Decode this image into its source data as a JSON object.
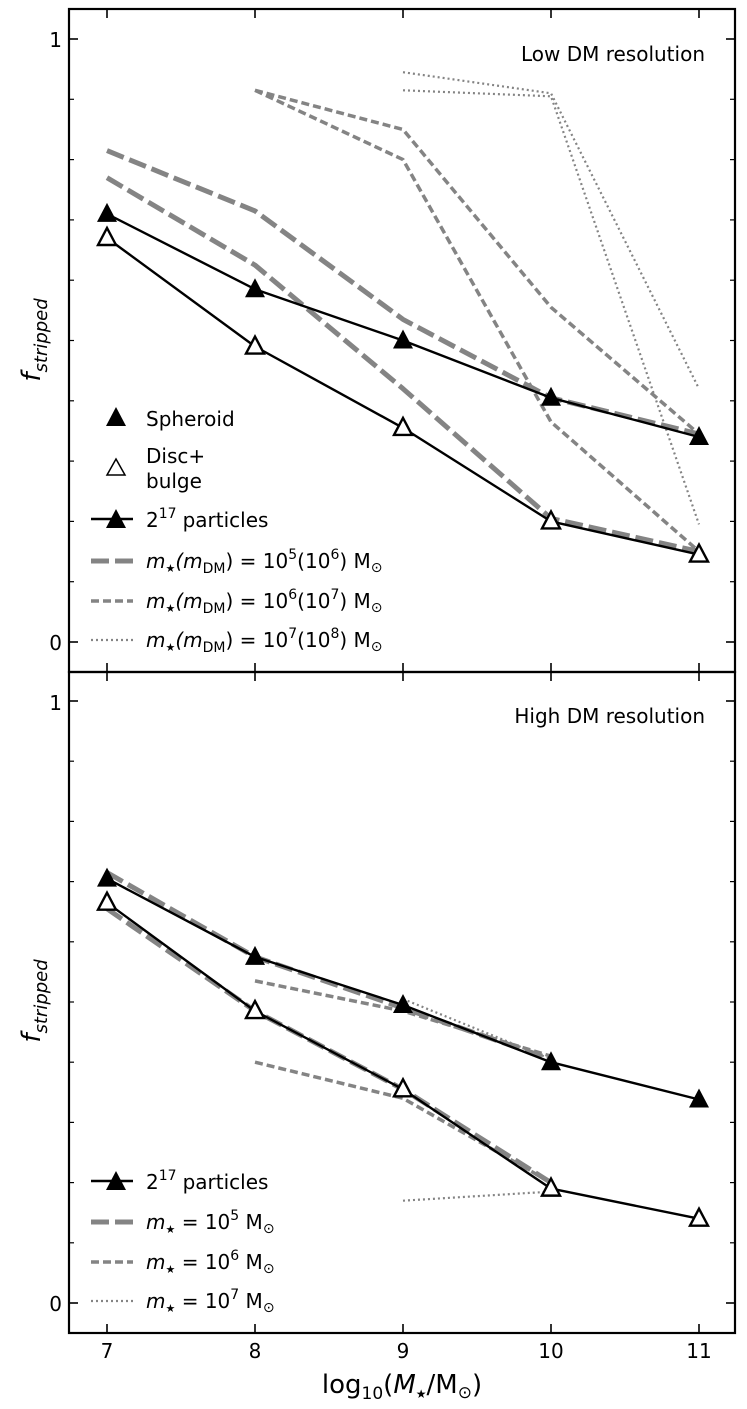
{
  "figure": {
    "xlabel_prefix": "log",
    "xlabel_sub": "10",
    "xlabel_open": "(",
    "xlabel_var": "M",
    "xlabel_star": "★",
    "xlabel_unit": "/M",
    "xlabel_sun": "⊙",
    "xlabel_close": ")",
    "ylabel_main": "f",
    "ylabel_sub": "stripped"
  },
  "chart_data": [
    {
      "type": "line",
      "title": "Low DM resolution",
      "xlabel": "log10(M★/M⊙)",
      "ylabel": "f_stripped",
      "xlim": [
        6.75,
        11.25
      ],
      "ylim": [
        -0.06,
        1.05
      ],
      "x_ticks": [
        7,
        8,
        9,
        10,
        11
      ],
      "x_tick_labels": [
        "7",
        "8",
        "9",
        "10",
        "11"
      ],
      "y_ticks": [
        0,
        1
      ],
      "y_tick_labels": [
        "0",
        "1"
      ],
      "series": [
        {
          "name": "Spheroid",
          "style": "solid",
          "marker": "filled-triangle",
          "x": [
            7,
            8,
            9,
            10,
            11
          ],
          "y": [
            0.71,
            0.585,
            0.5,
            0.405,
            0.34
          ]
        },
        {
          "name": "Disc+bulge",
          "style": "solid",
          "marker": "open-triangle",
          "x": [
            7,
            8,
            9,
            10,
            11
          ],
          "y": [
            0.67,
            0.49,
            0.355,
            0.2,
            0.145
          ]
        },
        {
          "name": "m*=1e5 spheroid",
          "style": "long-dash",
          "x": [
            7,
            8,
            9,
            10,
            11
          ],
          "y": [
            0.815,
            0.715,
            0.535,
            0.405,
            0.345
          ]
        },
        {
          "name": "m*=1e5 disc",
          "style": "long-dash",
          "x": [
            7,
            8,
            9,
            10,
            11
          ],
          "y": [
            0.77,
            0.625,
            0.42,
            0.205,
            0.15
          ]
        },
        {
          "name": "m*=1e6 spheroid",
          "style": "short-dash",
          "x": [
            8,
            9,
            10,
            11
          ],
          "y": [
            0.915,
            0.85,
            0.555,
            0.345
          ]
        },
        {
          "name": "m*=1e6 disc",
          "style": "short-dash",
          "x": [
            8,
            9,
            10,
            11
          ],
          "y": [
            0.915,
            0.8,
            0.365,
            0.15
          ]
        },
        {
          "name": "m*=1e7 spheroid",
          "style": "dotted",
          "x": [
            9,
            10,
            11
          ],
          "y": [
            0.945,
            0.91,
            0.42
          ]
        },
        {
          "name": "m*=1e7 disc",
          "style": "dotted",
          "x": [
            9,
            10,
            11
          ],
          "y": [
            0.915,
            0.905,
            0.195
          ]
        }
      ],
      "legend": {
        "position": "bottom-left",
        "entries": [
          {
            "marker": "filled-triangle",
            "label": "Spheroid"
          },
          {
            "marker": "open-triangle",
            "label_line1": "Disc+",
            "label_line2": "bulge"
          },
          {
            "style": "solid-marker",
            "base": "2",
            "exp": "17",
            "label": "particles"
          },
          {
            "style": "long-dash",
            "m1": "m",
            "s1": "★",
            "m2": "(m",
            "s2": "DM",
            "m3": ") = 10",
            "e1": "5",
            "m4": "(10",
            "e2": "6",
            "m5": ") M",
            "sun": "⊙"
          },
          {
            "style": "short-dash",
            "m1": "m",
            "s1": "★",
            "m2": "(m",
            "s2": "DM",
            "m3": ") = 10",
            "e1": "6",
            "m4": "(10",
            "e2": "7",
            "m5": ") M",
            "sun": "⊙"
          },
          {
            "style": "dotted",
            "m1": "m",
            "s1": "★",
            "m2": "(m",
            "s2": "DM",
            "m3": ") = 10",
            "e1": "7",
            "m4": "(10",
            "e2": "8",
            "m5": ") M",
            "sun": "⊙"
          }
        ]
      }
    },
    {
      "type": "line",
      "title": "High DM resolution",
      "xlabel": "log10(M★/M⊙)",
      "ylabel": "f_stripped",
      "xlim": [
        6.75,
        11.25
      ],
      "ylim": [
        -0.06,
        1.05
      ],
      "x_ticks": [
        7,
        8,
        9,
        10,
        11
      ],
      "x_tick_labels": [
        "7",
        "8",
        "9",
        "10",
        "11"
      ],
      "y_ticks": [
        0,
        1
      ],
      "y_tick_labels": [
        "0",
        "1"
      ],
      "series": [
        {
          "name": "Spheroid",
          "style": "solid",
          "marker": "filled-triangle",
          "x": [
            7,
            8,
            9,
            10,
            11
          ],
          "y": [
            0.705,
            0.575,
            0.495,
            0.4,
            0.338
          ]
        },
        {
          "name": "Disc+bulge",
          "style": "solid",
          "marker": "open-triangle",
          "x": [
            7,
            8,
            9,
            10,
            11
          ],
          "y": [
            0.665,
            0.485,
            0.355,
            0.19,
            0.14
          ]
        },
        {
          "name": "m*=1e5 spheroid",
          "style": "long-dash",
          "x": [
            7,
            8,
            9,
            10
          ],
          "y": [
            0.715,
            0.575,
            0.49,
            0.405
          ]
        },
        {
          "name": "m*=1e5 disc",
          "style": "long-dash",
          "x": [
            7,
            8,
            9,
            10
          ],
          "y": [
            0.655,
            0.485,
            0.355,
            0.2
          ]
        },
        {
          "name": "m*=1e6 spheroid",
          "style": "short-dash",
          "x": [
            8,
            9,
            10
          ],
          "y": [
            0.535,
            0.485,
            0.41
          ]
        },
        {
          "name": "m*=1e6 disc",
          "style": "short-dash",
          "x": [
            8,
            9,
            10
          ],
          "y": [
            0.4,
            0.34,
            0.2
          ]
        },
        {
          "name": "m*=1e7 spheroid",
          "style": "dotted",
          "x": [
            9,
            10
          ],
          "y": [
            0.505,
            0.405
          ]
        },
        {
          "name": "m*=1e7 disc",
          "style": "dotted",
          "x": [
            9,
            10
          ],
          "y": [
            0.17,
            0.185
          ]
        }
      ],
      "legend": {
        "position": "bottom-left",
        "entries": [
          {
            "style": "solid-marker",
            "base": "2",
            "exp": "17",
            "label": "particles"
          },
          {
            "style": "long-dash",
            "m1": "m",
            "s1": "★",
            "m3": " = 10",
            "e1": "5",
            "m5": " M",
            "sun": "⊙"
          },
          {
            "style": "short-dash",
            "m1": "m",
            "s1": "★",
            "m3": " = 10",
            "e1": "6",
            "m5": " M",
            "sun": "⊙"
          },
          {
            "style": "dotted",
            "m1": "m",
            "s1": "★",
            "m3": " = 10",
            "e1": "7",
            "m5": " M",
            "sun": "⊙"
          }
        ]
      }
    }
  ]
}
